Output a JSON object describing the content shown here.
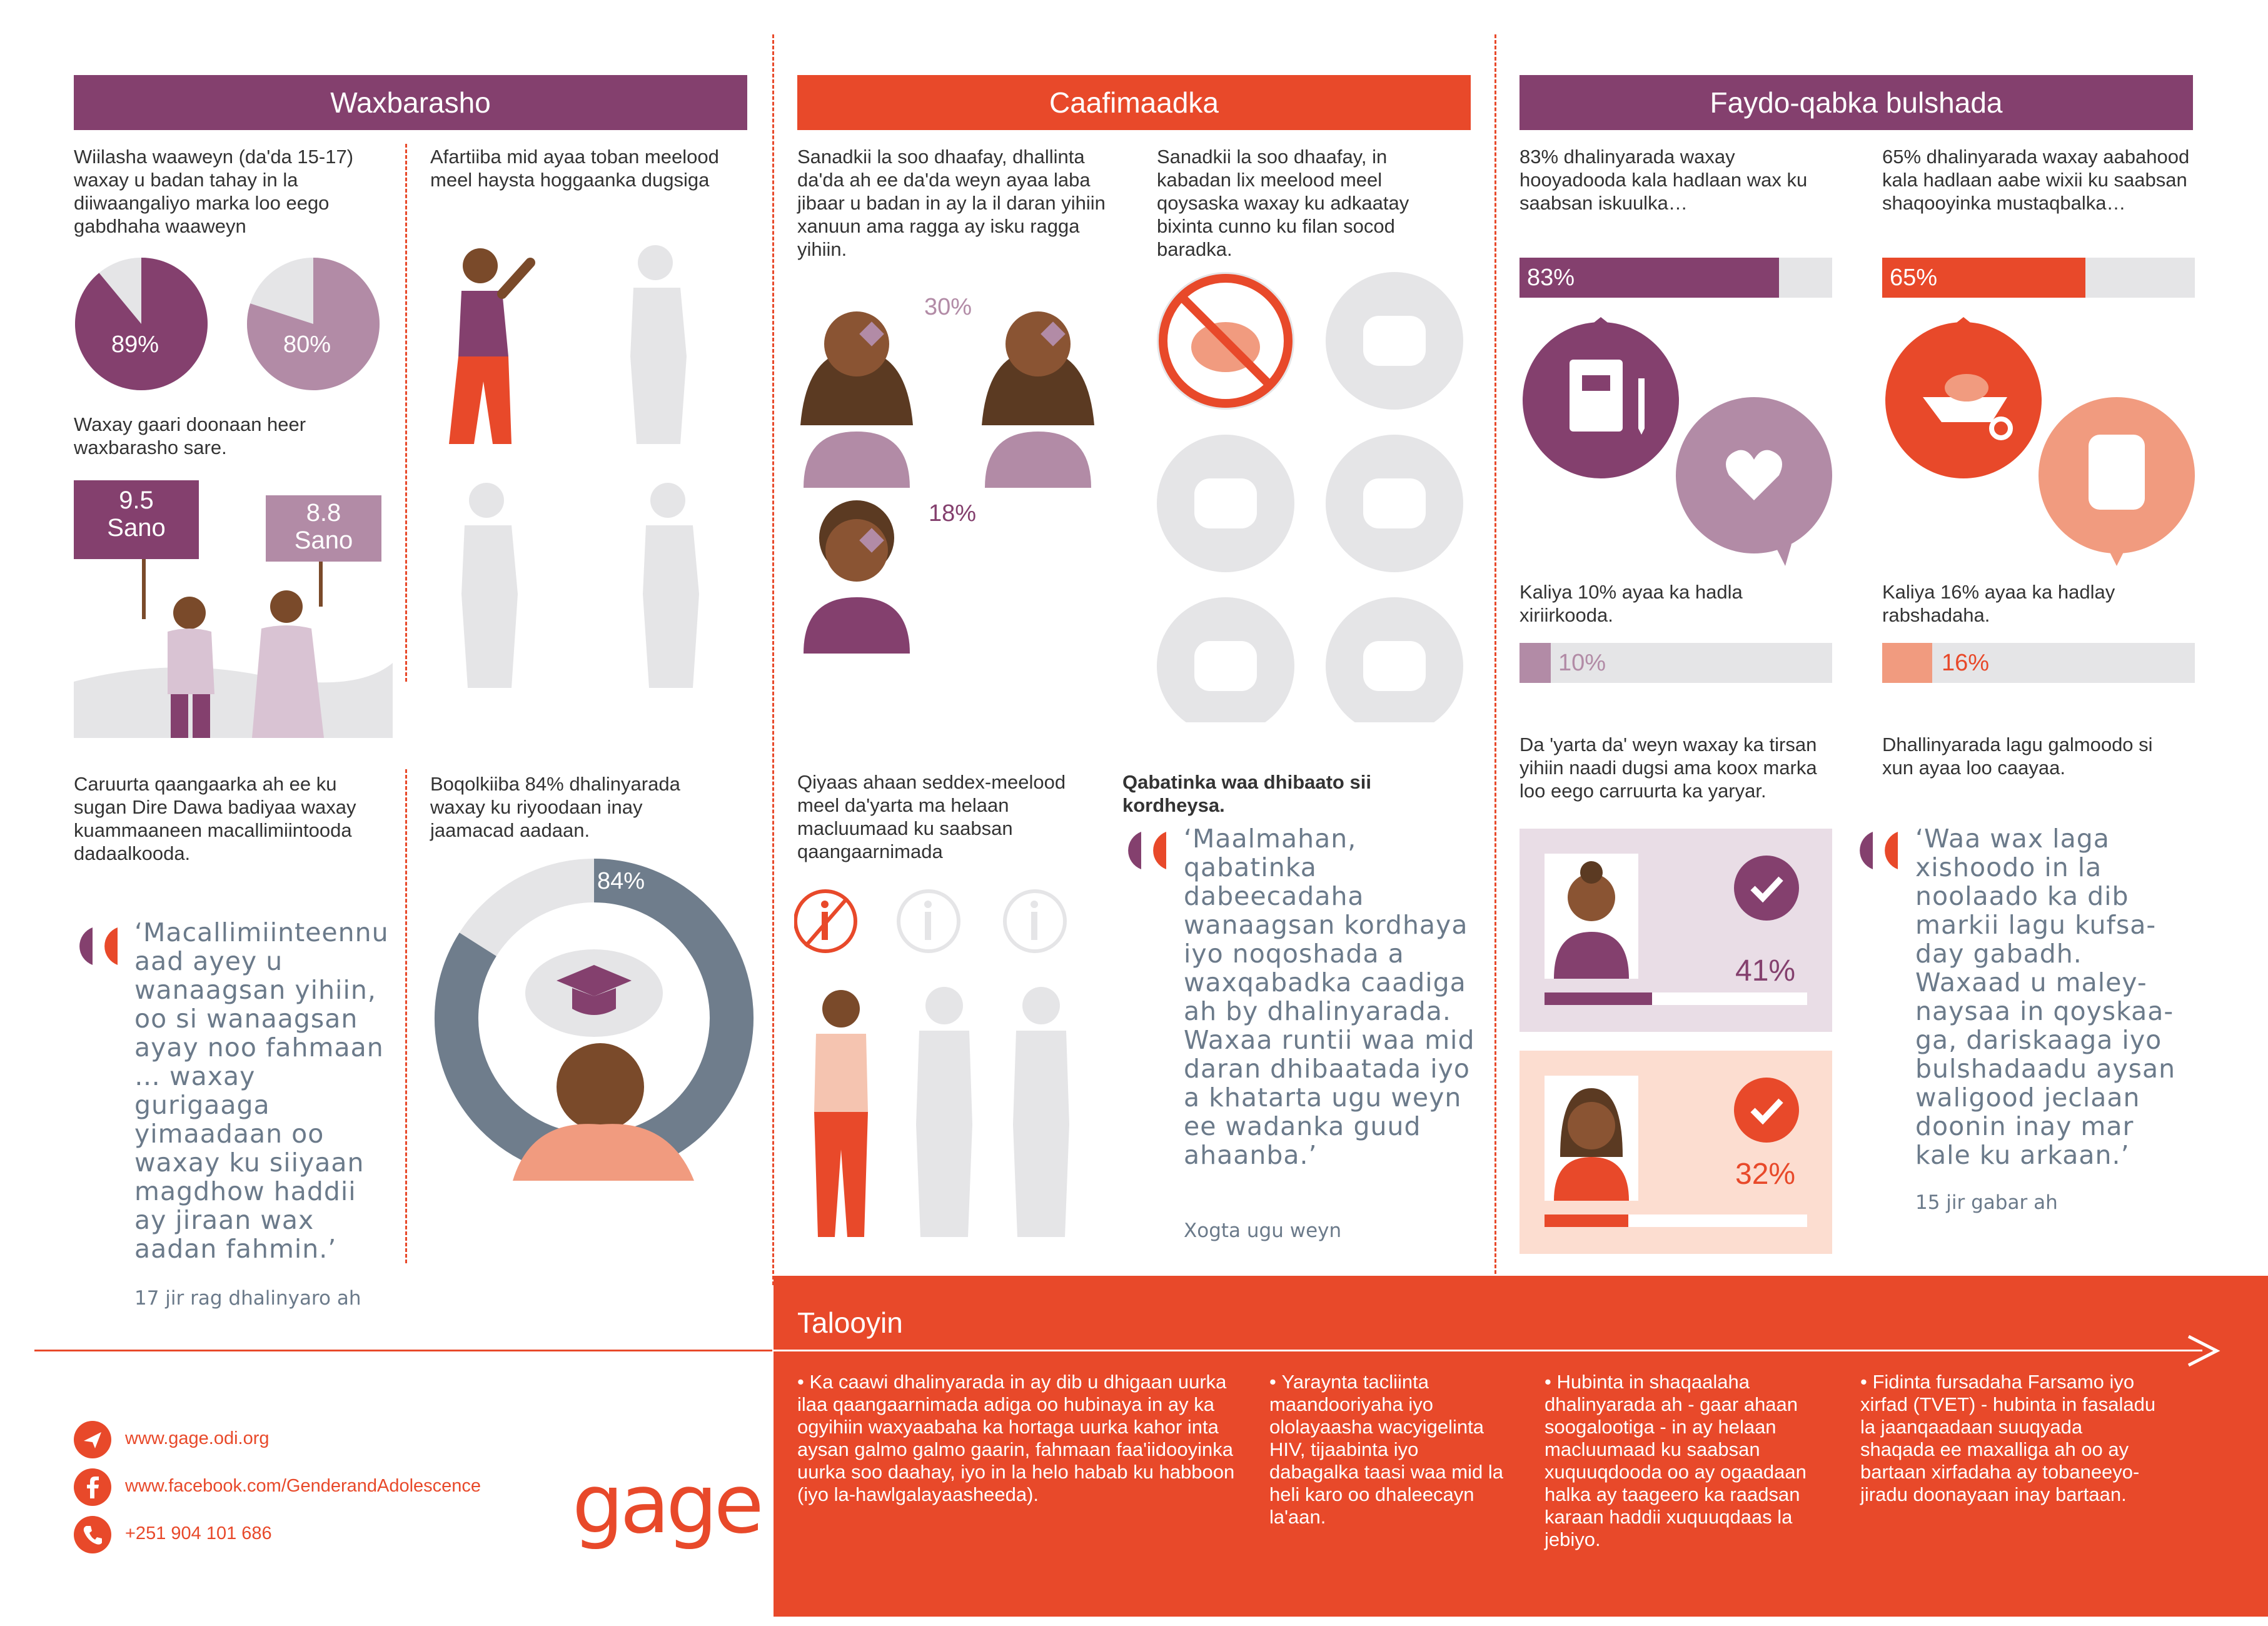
{
  "colors": {
    "purple": "#84406e",
    "orange": "#e8492a",
    "light_purple": "#b28ba6",
    "grey": "#e5e5e7"
  },
  "sections": {
    "education_title": "Waxbarasho",
    "health_title": "Caafimaadka",
    "social_title": "Faydo-qabka bulshada"
  },
  "education": {
    "girls_text": "Wiilasha waaweyn (da'da 15-17) waxay u badan tahay in la diiwaangaliyo marka loo eego gabdhaha waaweyn",
    "pie1_label": "89%",
    "pie1_value": 89,
    "pie2_label": "80%",
    "pie2_value": 80,
    "aspire_text": "Waxay gaari doonaan heer waxbarasho sare.",
    "sign1": "9.5\nSano",
    "sign2": "8.8\nSano",
    "literacy_text": "Afartiiba mid ayaa toban meelood meel haysta hoggaanka dugsiga",
    "diredawa_text": "Caruurta qaangaarka ah ee ku sugan Dire Dawa badiyaa waxay kuammaaneen macallimiintooda dadaalkooda.",
    "quote": "‘Macallimiinteennu aad ayey u wanaagsan yihiin, oo si wanaagsan ayay noo fahmaan … waxay gurigaaga yimaadaan oo waxay ku siiyaan magdhow haddii ay jiraan wax aadan fahmin.’",
    "quote_attr": "17 jir rag dhalinyaro ah",
    "proud_text": "Boqolkiiba 84% dhalinyarada waxay ku riyoodaan inay jaamacad aadaan.",
    "donut_label": "84%",
    "donut_value": 84
  },
  "health": {
    "illness_text": "Sanadkii la soo dhaafay, dhallinta da'da ah ee da'da weyn ayaa laba jibaar u badan in ay la il daran yihiin xanuun ama ragga ay isku ragga yihiin.",
    "pct1": "30%",
    "pct2": "18%",
    "food_text": "Sanadkii la soo dhaafay, in kabadan lix meelood meel qoysaska waxay ku adkaatay bixinta cunno ku filan socod baradka.",
    "info_text": "Qiyaas ahaan seddex-meelood meel da'yarta ma helaan macluumaad ku saabsan qaangaarnimada",
    "khat_title": "Qabatinka waa dhibaato sii kordheysa.",
    "quote": "‘Maalmahan, qabatinka dabeecadaha wanaagsan kordhaya iyo noqoshada a waxqabadka caadiga ah by dhalinyarada. Waxaa runtii waa mid daran dhibaatada iyo a khatarta ugu weyn ee wadanka guud ahaanba.’",
    "quote_attr": "Xogta ugu weyn"
  },
  "social": {
    "girls_text": "83% dhalinyarada waxay hooyadooda kala hadlaan wax ku saabsan iskuulka…",
    "girls_bar_label": "83%",
    "girls_bar_value": 83,
    "boys_text": "65% dhalinyarada waxay aabahood kala hadlaan aabe wixii ku saabsan shaqooyinka mustaqbalka…",
    "boys_bar_label": "65%",
    "boys_bar_value": 65,
    "girls_only_text": "Kaliya 10% ayaa ka hadla xiriirkooda.",
    "girls_only_label": "10%",
    "girls_only_value": 10,
    "boys_only_text": "Kaliya 16% ayaa ka hadlay rabshadaha.",
    "boys_only_label": "16%",
    "boys_only_value": 16,
    "half_text": "Da 'yarta da' weyn waxay ka tirsan yihiin naadi dugsi ama koox marka loo eego carruurta ka yaryar.",
    "card1_pct": "41%",
    "card1_value": 41,
    "card2_pct": "32%",
    "card2_value": 32,
    "bully_text": "Dhallinyarada lagu galmoodo si xun ayaa loo caayaa.",
    "quote": "‘Waa wax laga xishoodo in la noolaado ka dib markii lagu kufsa-day gabadh. Waxaad u maley-naysaa in qoyskaa-ga, dariskaaga iyo bulshadaadu aysan waligood jeclaan doonin inay mar kale ku arkaan.’",
    "quote_attr": "15 jir gabar ah"
  },
  "recommendations": {
    "title": "Talooyin",
    "items": [
      "Ka caawi dhalinyarada in ay dib u dhigaan uurka ilaa qaangaarnimada adiga oo hubinaya in ay ka ogyihiin waxyaabaha ka hortaga uurka kahor inta aysan galmo galmo gaarin, fahmaan faa'iidooyinka uurka soo daahay, iyo in la helo habab ku habboon (iyo la-hawlgalayaasheeda).",
      "Yaraynta tacliinta maandooriyaha iyo ololayaasha wacyigelinta HIV, tijaabinta iyo dabagalka taasi waa mid la heli karo oo dhaleecayn la'aan.",
      "Hubinta in shaqaalaha dhalinyarada ah - gaar ahaan soogalootiga - in ay helaan macluumaad ku saabsan xuquuqdooda oo ay ogaadaan halka ay taageero ka raadsan karaan haddii xuquuqdaas la jebiyo.",
      "Fidinta fursadaha Farsamo iyo xirfad (TVET) - hubinta in fasaladu la jaanqaadaan suuqyada shaqada ee maxalliga ah oo ay bartaan xirfadaha ay tobaneeyo-jiradu doonayaan inay bartaan."
    ]
  },
  "contact": {
    "website": "www.gage.odi.org",
    "facebook": "www.facebook.com/GenderandAdolescence",
    "phone": "+251 904 101 686",
    "logo": "gage"
  }
}
